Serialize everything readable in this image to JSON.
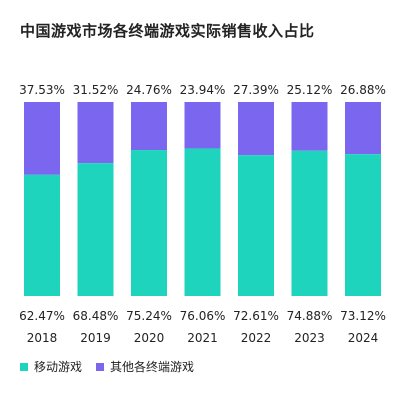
{
  "title": "中国游戏市场各终端游戏实际销售收入占比",
  "chart_data": {
    "type": "bar",
    "stacked": true,
    "title": "中国游戏市场各终端游戏实际销售收入占比",
    "categories": [
      "2018",
      "2019",
      "2020",
      "2021",
      "2022",
      "2023",
      "2024"
    ],
    "series": [
      {
        "name": "移动游戏",
        "values": [
          62.47,
          68.48,
          75.24,
          76.06,
          72.61,
          74.88,
          73.12
        ],
        "labels": [
          "62.47%",
          "68.48%",
          "75.24%",
          "76.06%",
          "72.61%",
          "74.88%",
          "73.12%"
        ],
        "color": "#1ed4bd"
      },
      {
        "name": "其他各终端游戏",
        "values": [
          37.53,
          31.52,
          24.76,
          23.94,
          27.39,
          25.12,
          26.88
        ],
        "labels": [
          "37.53%",
          "31.52%",
          "24.76%",
          "23.94%",
          "27.39%",
          "25.12%",
          "26.88%"
        ],
        "color": "#7b66f0"
      }
    ],
    "ylim": [
      0,
      100
    ],
    "grid": false,
    "legend_position": "bottom-left"
  }
}
